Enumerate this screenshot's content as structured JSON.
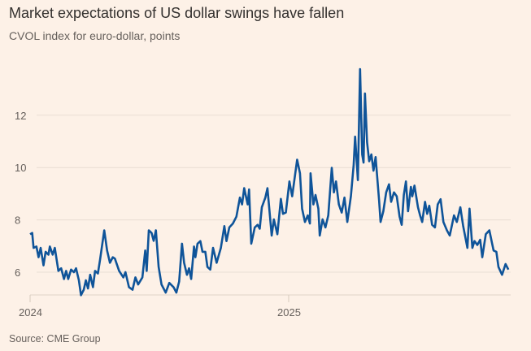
{
  "title": "Market expectations of US dollar swings have fallen",
  "subtitle": "CVOL index for euro-dollar, points",
  "source": "Source: CME Group",
  "colors": {
    "background": "#fdf1e7",
    "line": "#0f5499",
    "grid": "#e9ded4"
  },
  "chart_data": {
    "type": "line",
    "title": "Market expectations of US dollar swings have fallen",
    "subtitle": "CVOL index for euro-dollar, points",
    "xlabel": "",
    "ylabel": "",
    "ylim": [
      5.1,
      14
    ],
    "xlim": [
      "2024-01-01",
      "2025-11-10"
    ],
    "grid": true,
    "yticks": [
      6,
      8,
      10,
      12
    ],
    "yticklabels": [
      "6",
      "8",
      "10",
      "12"
    ],
    "xticks": [
      "2024-01-01",
      "2025-01-01"
    ],
    "xticklabels": [
      "2024",
      "2025"
    ],
    "series": [
      {
        "dates": [
          "2024-01-01",
          "2024-01-04",
          "2024-01-06",
          "2024-01-10",
          "2024-01-13",
          "2024-01-16",
          "2024-01-20",
          "2024-01-23",
          "2024-01-27",
          "2024-01-29",
          "2024-02-02",
          "2024-02-05",
          "2024-02-10",
          "2024-02-14",
          "2024-02-18",
          "2024-02-21",
          "2024-02-24",
          "2024-02-28",
          "2024-03-03",
          "2024-03-06",
          "2024-03-10",
          "2024-03-13",
          "2024-03-17",
          "2024-03-20",
          "2024-03-23",
          "2024-03-26",
          "2024-03-30",
          "2024-04-02",
          "2024-04-06",
          "2024-04-09",
          "2024-04-15",
          "2024-04-19",
          "2024-04-23",
          "2024-04-27",
          "2024-04-30",
          "2024-05-06",
          "2024-05-12",
          "2024-05-15",
          "2024-05-20",
          "2024-05-25",
          "2024-05-29",
          "2024-06-02",
          "2024-06-08",
          "2024-06-12",
          "2024-06-14",
          "2024-06-17",
          "2024-06-21",
          "2024-06-24",
          "2024-06-27",
          "2024-07-01",
          "2024-07-05",
          "2024-07-11",
          "2024-07-16",
          "2024-07-22",
          "2024-07-26",
          "2024-07-30",
          "2024-08-03",
          "2024-08-06",
          "2024-08-10",
          "2024-08-13",
          "2024-08-16",
          "2024-08-20",
          "2024-08-22",
          "2024-08-25",
          "2024-08-29",
          "2024-09-01",
          "2024-09-05",
          "2024-09-08",
          "2024-09-12",
          "2024-09-16",
          "2024-09-21",
          "2024-09-27",
          "2024-10-02",
          "2024-10-05",
          "2024-10-09",
          "2024-10-14",
          "2024-10-19",
          "2024-10-24",
          "2024-10-27",
          "2024-10-30",
          "2024-11-04",
          "2024-11-06",
          "2024-11-09",
          "2024-11-14",
          "2024-11-18",
          "2024-11-21",
          "2024-11-24",
          "2024-11-29",
          "2024-12-02",
          "2024-12-08",
          "2024-12-11",
          "2024-12-16",
          "2024-12-21",
          "2024-12-24",
          "2024-12-28",
          "2025-01-02",
          "2025-01-06",
          "2025-01-13",
          "2025-01-17",
          "2025-01-20",
          "2025-01-24",
          "2025-01-28",
          "2025-01-31",
          "2025-02-01",
          "2025-02-05",
          "2025-02-08",
          "2025-02-12",
          "2025-02-14",
          "2025-02-18",
          "2025-02-22",
          "2025-02-26",
          "2025-03-03",
          "2025-03-06",
          "2025-03-09",
          "2025-03-13",
          "2025-03-17",
          "2025-03-21",
          "2025-03-25",
          "2025-03-30",
          "2025-04-03",
          "2025-04-05",
          "2025-04-09",
          "2025-04-12",
          "2025-04-15",
          "2025-04-17",
          "2025-04-19",
          "2025-04-22",
          "2025-04-25",
          "2025-04-28",
          "2025-05-01",
          "2025-05-04",
          "2025-05-09",
          "2025-05-11",
          "2025-05-15",
          "2025-05-19",
          "2025-05-23",
          "2025-05-26",
          "2025-05-30",
          "2025-06-03",
          "2025-06-07",
          "2025-06-10",
          "2025-06-13",
          "2025-06-16",
          "2025-06-19",
          "2025-06-23",
          "2025-06-25",
          "2025-06-28",
          "2025-07-03",
          "2025-07-06",
          "2025-07-09",
          "2025-07-13",
          "2025-07-16",
          "2025-07-19",
          "2025-07-23",
          "2025-07-27",
          "2025-07-31",
          "2025-08-04",
          "2025-08-08",
          "2025-08-13",
          "2025-08-17",
          "2025-08-23",
          "2025-08-27",
          "2025-09-01",
          "2025-09-05",
          "2025-09-11",
          "2025-09-14",
          "2025-09-18",
          "2025-09-21",
          "2025-09-25",
          "2025-09-29",
          "2025-10-02",
          "2025-10-07",
          "2025-10-12",
          "2025-10-16",
          "2025-10-18",
          "2025-10-22",
          "2025-10-25",
          "2025-10-30",
          "2025-11-04",
          "2025-11-08"
        ],
        "values": [
          7.45,
          7.5,
          6.93,
          6.98,
          6.57,
          6.93,
          6.26,
          6.78,
          6.67,
          6.98,
          6.67,
          6.93,
          6.05,
          6.15,
          5.74,
          6.05,
          5.74,
          6.1,
          6.0,
          6.15,
          5.69,
          5.12,
          5.33,
          5.69,
          5.38,
          5.9,
          5.43,
          6.05,
          5.95,
          6.47,
          7.6,
          6.83,
          6.36,
          6.57,
          6.52,
          6.05,
          5.8,
          6.0,
          5.43,
          5.33,
          5.8,
          5.53,
          5.8,
          6.83,
          6.05,
          7.6,
          7.5,
          7.2,
          7.6,
          6.2,
          5.53,
          5.22,
          5.59,
          5.43,
          5.22,
          5.64,
          7.09,
          6.36,
          5.9,
          6.15,
          5.74,
          6.98,
          6.57,
          7.09,
          7.19,
          6.78,
          6.78,
          6.2,
          6.1,
          6.93,
          6.36,
          6.93,
          7.76,
          7.19,
          7.71,
          7.86,
          8.12,
          8.85,
          8.59,
          9.21,
          8.59,
          9.16,
          7.09,
          7.71,
          7.81,
          7.66,
          8.48,
          8.85,
          9.21,
          7.4,
          8.02,
          7.45,
          8.8,
          8.23,
          8.28,
          9.47,
          8.9,
          10.3,
          9.78,
          8.43,
          7.92,
          8.17,
          7.86,
          9.78,
          8.59,
          8.95,
          8.43,
          7.4,
          8.02,
          7.71,
          8.17,
          9.99,
          9.05,
          9.47,
          8.59,
          8.28,
          8.85,
          7.92,
          8.9,
          10.09,
          11.18,
          9.52,
          13.76,
          10.5,
          10.19,
          12.83,
          10.97,
          10.24,
          10.5,
          9.88,
          10.4,
          8.74,
          7.92,
          8.33,
          9.05,
          9.36,
          8.69,
          9.05,
          8.9,
          8.12,
          7.81,
          8.95,
          9.47,
          8.33,
          9.26,
          8.9,
          9.31,
          8.48,
          8.17,
          7.92,
          8.69,
          8.23,
          8.54,
          7.81,
          7.71,
          8.59,
          8.79,
          7.92,
          7.6,
          7.4,
          8.17,
          7.92,
          8.48,
          7.76,
          6.93,
          8.43,
          6.93,
          7.19,
          7.04,
          7.24,
          6.57,
          7.45,
          7.6,
          7.09,
          6.83,
          6.78,
          6.2,
          5.9,
          6.31,
          6.1
        ]
      }
    ]
  }
}
